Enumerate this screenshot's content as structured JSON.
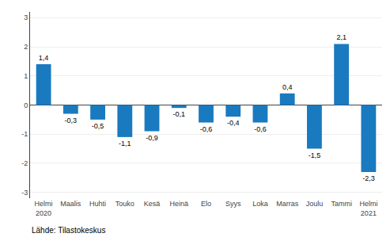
{
  "chart_data": {
    "type": "bar",
    "categories": [
      "Helmi\n2020",
      "Maalis",
      "Huhti",
      "Touko",
      "Kesä",
      "Heinä",
      "Elo",
      "Syys",
      "Loka",
      "Marras",
      "Joulu",
      "Tammi",
      "Helmi\n2021"
    ],
    "values": [
      1.4,
      -0.3,
      -0.5,
      -1.1,
      -0.9,
      -0.1,
      -0.6,
      -0.4,
      -0.6,
      0.4,
      -1.5,
      2.1,
      -2.3
    ],
    "value_labels": [
      "1,4",
      "-0,3",
      "-0,5",
      "-1,1",
      "-0,9",
      "-0,1",
      "-0,6",
      "-0,4",
      "-0,6",
      "0,4",
      "-1,5",
      "2,1",
      "-2,3"
    ],
    "data_labels": true,
    "color": "#1a7abf",
    "ylim": [
      -3.2,
      3.2
    ],
    "yticks": [
      -3,
      -2,
      -1,
      0,
      1,
      2,
      3
    ],
    "grid": true,
    "annotations": [
      "Lähde: Tilastokeskus"
    ]
  }
}
